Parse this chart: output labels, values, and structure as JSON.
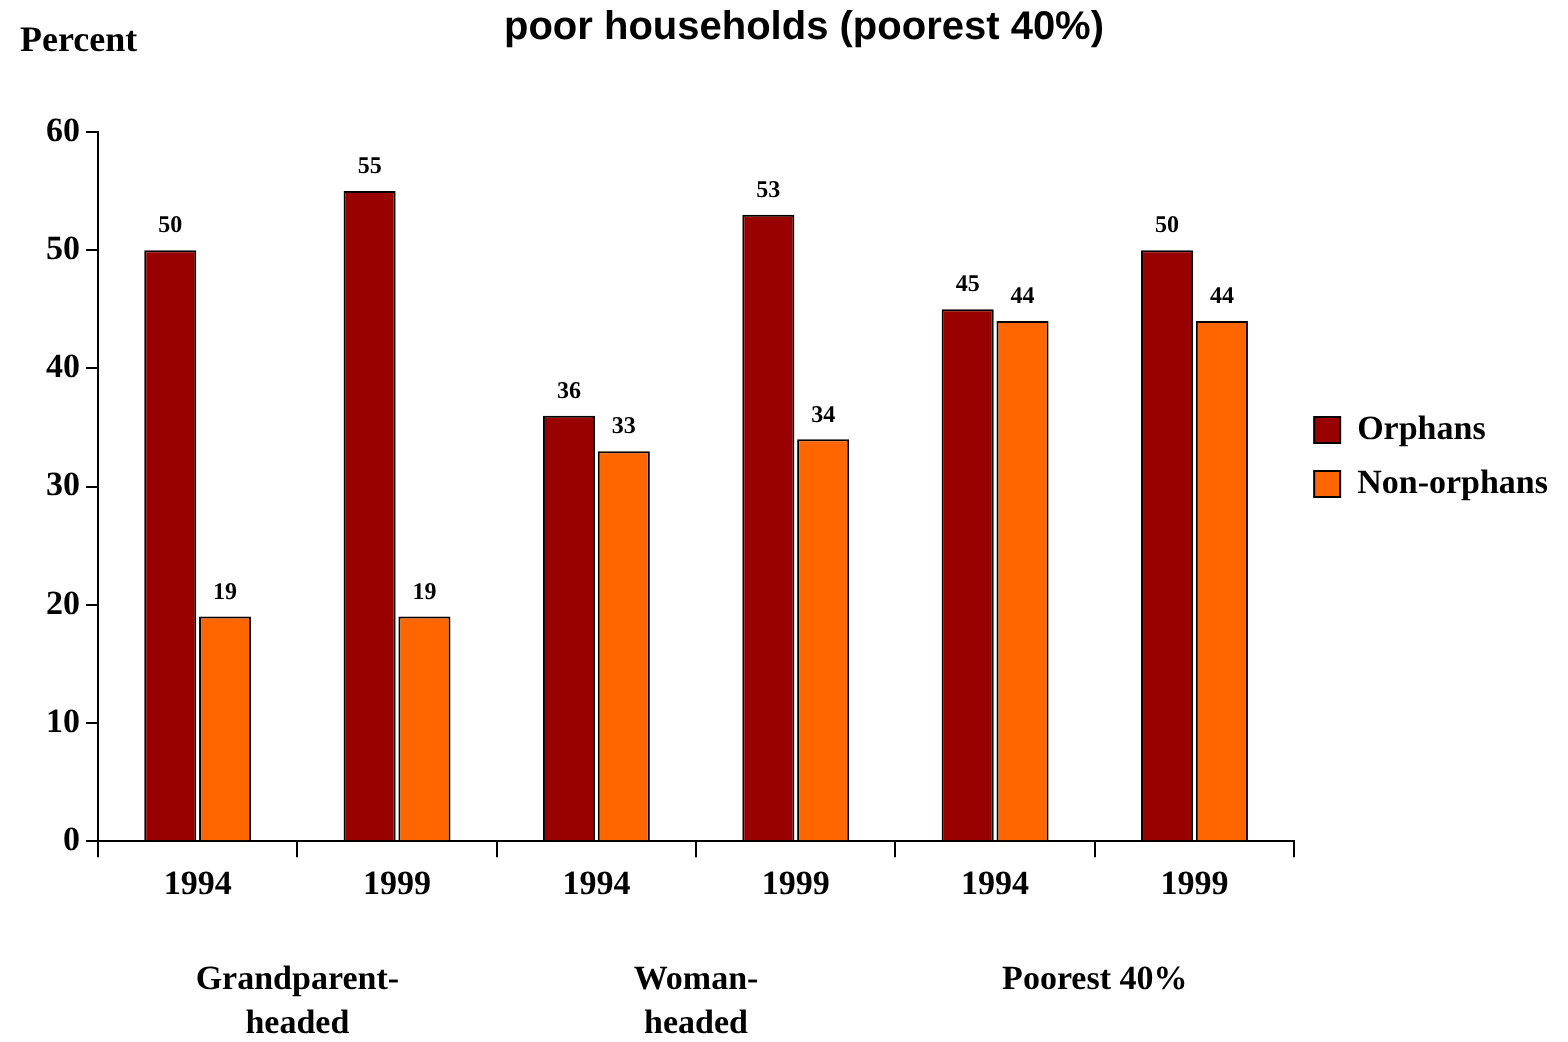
{
  "chart_data": {
    "type": "bar",
    "title": "poor households (poorest 40%)",
    "ylabel": "Percent",
    "categories": [
      "1994",
      "1999",
      "1994",
      "1999",
      "1994",
      "1999"
    ],
    "series": [
      {
        "name": "Orphans",
        "color": "#990000",
        "values": [
          50,
          55,
          36,
          53,
          45,
          50
        ]
      },
      {
        "name": "Non-orphans",
        "color": "#ff6600",
        "values": [
          19,
          19,
          33,
          34,
          44,
          44
        ]
      }
    ],
    "ylim": [
      0,
      60
    ],
    "yticks": [
      0,
      10,
      20,
      30,
      40,
      50,
      60
    ],
    "grid": false,
    "legend": "right",
    "data_labels": true,
    "annotations": [
      "Grandparent-headed",
      "Woman-headed",
      "Poorest 40%"
    ]
  }
}
